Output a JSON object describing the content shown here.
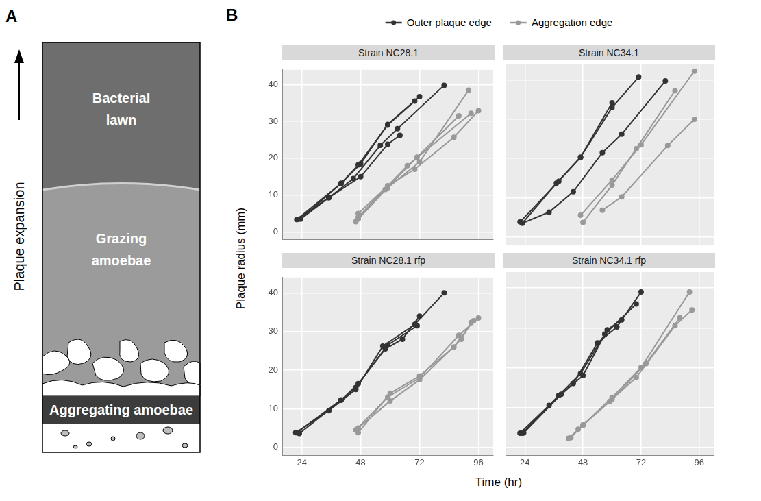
{
  "panel_a": {
    "letter": "A",
    "arrow_label": "Plaque expansion",
    "zones": [
      "Bacterial lawn",
      "Grazing amoebae",
      "Aggregating amoebae"
    ]
  },
  "chart_data": {
    "letter": "B",
    "type": "line",
    "x_label": "Time (hr)",
    "y_label": "Plaque radius (mm)",
    "xlim": [
      16,
      102
    ],
    "xticks": [
      24,
      48,
      72,
      96
    ],
    "ylim": [
      -2,
      44
    ],
    "yticks": [
      0,
      10,
      20,
      30,
      40
    ],
    "grid": true,
    "legend": "top",
    "marker": "circle",
    "series": [
      {
        "name": "Outer plaque edge",
        "color": "#333333"
      },
      {
        "name": "Aggregation edge",
        "color": "#999999"
      }
    ],
    "panels": [
      {
        "title": "Strain NC28.1",
        "values": [
          [
            [
              [
                22,
                3.4
              ],
              [
                40,
                13.2
              ],
              [
                47,
                18.2
              ],
              [
                59,
                29
              ],
              [
                70,
                35.5
              ]
            ],
            [
              [
                23.5,
                3.5
              ],
              [
                40,
                13.2
              ],
              [
                48,
                18.5
              ],
              [
                59,
                29.2
              ],
              [
                72,
                36.7
              ]
            ],
            [
              [
                22,
                3.4
              ],
              [
                35,
                9.3
              ],
              [
                45,
                14.5
              ],
              [
                56,
                23.5
              ],
              [
                63,
                28
              ],
              [
                82,
                39.8
              ]
            ],
            [
              [
                23.5,
                3.5
              ],
              [
                35,
                9.3
              ],
              [
                48,
                15
              ],
              [
                59,
                23.8
              ],
              [
                64,
                26.2
              ]
            ]
          ],
          [
            [
              [
                46,
                2.8
              ],
              [
                58,
                11.5
              ],
              [
                71,
                20.3
              ],
              [
                88,
                31.5
              ]
            ],
            [
              [
                47,
                4
              ],
              [
                59,
                12.5
              ],
              [
                67,
                18
              ],
              [
                93,
                32.2
              ]
            ],
            [
              [
                47,
                5
              ],
              [
                59,
                12.5
              ],
              [
                70,
                17
              ],
              [
                86,
                25.7
              ],
              [
                96,
                32.9
              ]
            ],
            [
              [
                47,
                3.5
              ],
              [
                59,
                12
              ],
              [
                72,
                19
              ],
              [
                92,
                38.5
              ]
            ]
          ]
        ]
      },
      {
        "title": "Strain NC34.1",
        "values": [
          [
            [
              [
                22,
                3.8
              ],
              [
                38,
                14.2
              ],
              [
                47,
                20.3
              ],
              [
                60,
                34.2
              ]
            ],
            [
              [
                23,
                3.5
              ],
              [
                37,
                13.7
              ],
              [
                47,
                20.3
              ],
              [
                60,
                33
              ],
              [
                71,
                40.8
              ]
            ],
            [
              [
                23,
                3.5
              ],
              [
                34,
                6.3
              ],
              [
                44,
                11.5
              ],
              [
                56,
                21.5
              ],
              [
                64,
                26.2
              ],
              [
                82,
                39.8
              ]
            ]
          ],
          [
            [
              [
                47,
                5.5
              ],
              [
                60,
                14.5
              ],
              [
                72,
                23.5
              ],
              [
                94,
                42.3
              ]
            ],
            [
              [
                48,
                3.7
              ],
              [
                60,
                13.2
              ],
              [
                70,
                22.5
              ],
              [
                86,
                37.3
              ]
            ],
            [
              [
                56,
                6.8
              ],
              [
                64,
                10.2
              ],
              [
                83,
                23.3
              ],
              [
                94,
                30
              ]
            ]
          ]
        ]
      },
      {
        "title": "Strain NC28.1 rfp",
        "values": [
          [
            [
              [
                21.5,
                3.8
              ],
              [
                35,
                9.5
              ],
              [
                46,
                15
              ],
              [
                57,
                26.2
              ],
              [
                70,
                31.8
              ],
              [
                82,
                40
              ]
            ],
            [
              [
                23,
                3.6
              ],
              [
                40,
                12.2
              ],
              [
                47,
                16.5
              ],
              [
                58,
                25.5
              ],
              [
                65,
                28
              ],
              [
                72,
                34
              ]
            ],
            [
              [
                22,
                3.8
              ],
              [
                40,
                12.3
              ],
              [
                46,
                15.5
              ],
              [
                59,
                26.5
              ],
              [
                71,
                31.5
              ]
            ]
          ],
          [
            [
              [
                46,
                4.5
              ],
              [
                59,
                13
              ],
              [
                72,
                18
              ],
              [
                88,
                29
              ],
              [
                96,
                33.5
              ]
            ],
            [
              [
                47,
                3.8
              ],
              [
                60,
                14
              ],
              [
                72,
                18.5
              ],
              [
                86,
                26
              ],
              [
                94,
                32.8
              ]
            ],
            [
              [
                47,
                5
              ],
              [
                60,
                12
              ],
              [
                72,
                17.5
              ],
              [
                89,
                28
              ],
              [
                93,
                32.3
              ]
            ]
          ]
        ]
      },
      {
        "title": "Strain NC34.1 rfp",
        "values": [
          [
            [
              [
                22,
                3.5
              ],
              [
                34,
                10.5
              ],
              [
                44,
                16
              ],
              [
                54,
                26.2
              ],
              [
                62,
                30.2
              ],
              [
                72,
                39
              ]
            ],
            [
              [
                23,
                3.5
              ],
              [
                38,
                13
              ],
              [
                47,
                18.5
              ],
              [
                57,
                28.4
              ],
              [
                70,
                36
              ]
            ],
            [
              [
                23.5,
                3.6
              ],
              [
                39,
                13.3
              ],
              [
                48,
                18
              ],
              [
                58,
                29.5
              ],
              [
                64,
                32
              ]
            ]
          ],
          [
            [
              [
                42,
                2.2
              ],
              [
                48,
                5.5
              ],
              [
                60,
                12.5
              ],
              [
                72,
                20
              ],
              [
                92,
                39
              ]
            ],
            [
              [
                43,
                2.4
              ],
              [
                48,
                5.6
              ],
              [
                59,
                11.5
              ],
              [
                70,
                17.5
              ],
              [
                86,
                30.5
              ],
              [
                93,
                34.5
              ]
            ],
            [
              [
                46,
                4.5
              ],
              [
                60,
                12
              ],
              [
                74,
                21
              ],
              [
                88,
                32.5
              ]
            ]
          ]
        ]
      }
    ]
  }
}
